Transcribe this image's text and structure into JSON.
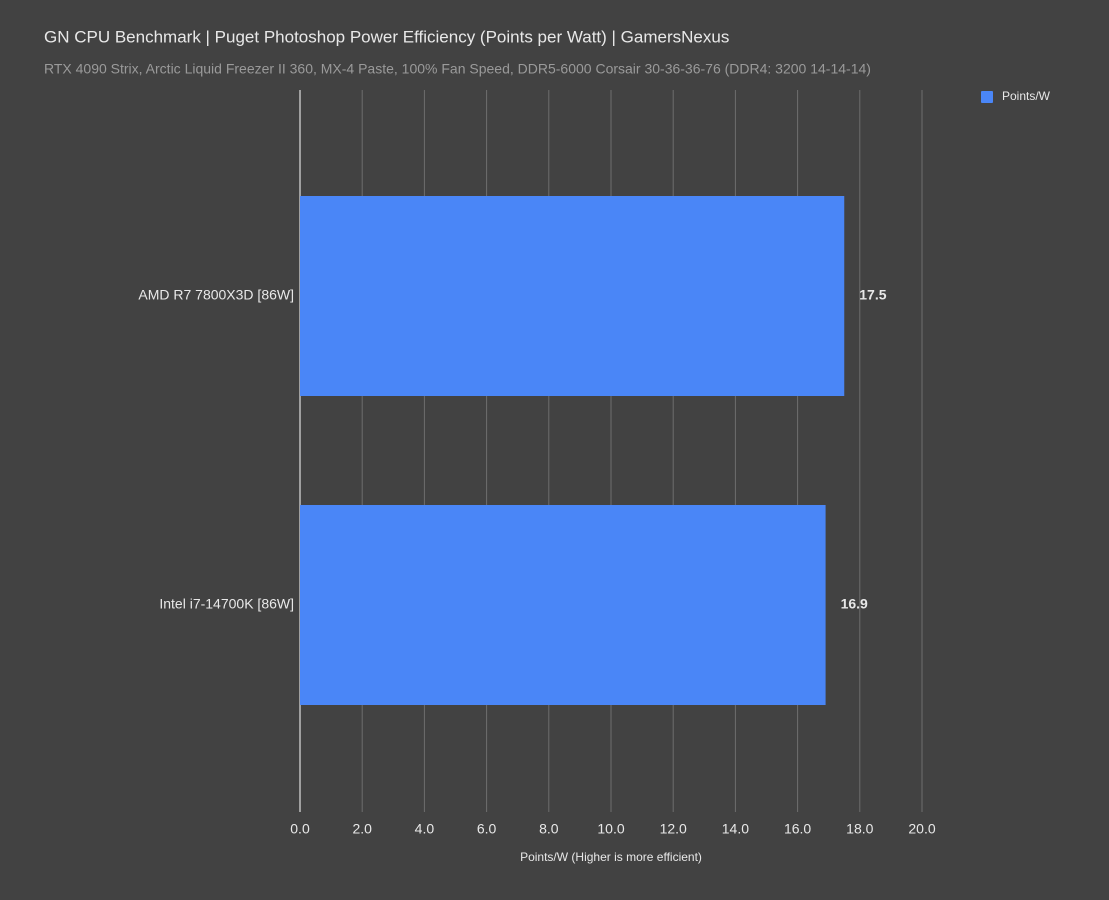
{
  "chart_data": {
    "type": "bar",
    "orientation": "horizontal",
    "title": "GN CPU Benchmark | Puget Photoshop Power Efficiency (Points per Watt) | GamersNexus",
    "subtitle": "RTX 4090 Strix, Arctic Liquid Freezer II 360, MX-4 Paste, 100% Fan Speed, DDR5-6000 Corsair 30-36-36-76 (DDR4: 3200 14-14-14)",
    "x_label": "Points/W (Higher is more efficient)",
    "categories": [
      "AMD R7 7800X3D [86W]",
      "Intel i7-14700K [86W]"
    ],
    "series": [
      {
        "name": "Points/W",
        "color": "#4a86f7",
        "values": [
          17.5,
          16.9
        ]
      }
    ],
    "xlim": [
      0,
      20
    ],
    "xticks": [
      {
        "value": 0,
        "label": "0.0"
      },
      {
        "value": 2,
        "label": "2.0"
      },
      {
        "value": 4,
        "label": "4.0"
      },
      {
        "value": 6,
        "label": "6.0"
      },
      {
        "value": 8,
        "label": "8.0"
      },
      {
        "value": 10,
        "label": "10.0"
      },
      {
        "value": 12,
        "label": "12.0"
      },
      {
        "value": 14,
        "label": "14.0"
      },
      {
        "value": 16,
        "label": "16.0"
      },
      {
        "value": 18,
        "label": "18.0"
      },
      {
        "value": 20,
        "label": "20.0"
      }
    ],
    "grid": true,
    "legend": "top-right"
  }
}
